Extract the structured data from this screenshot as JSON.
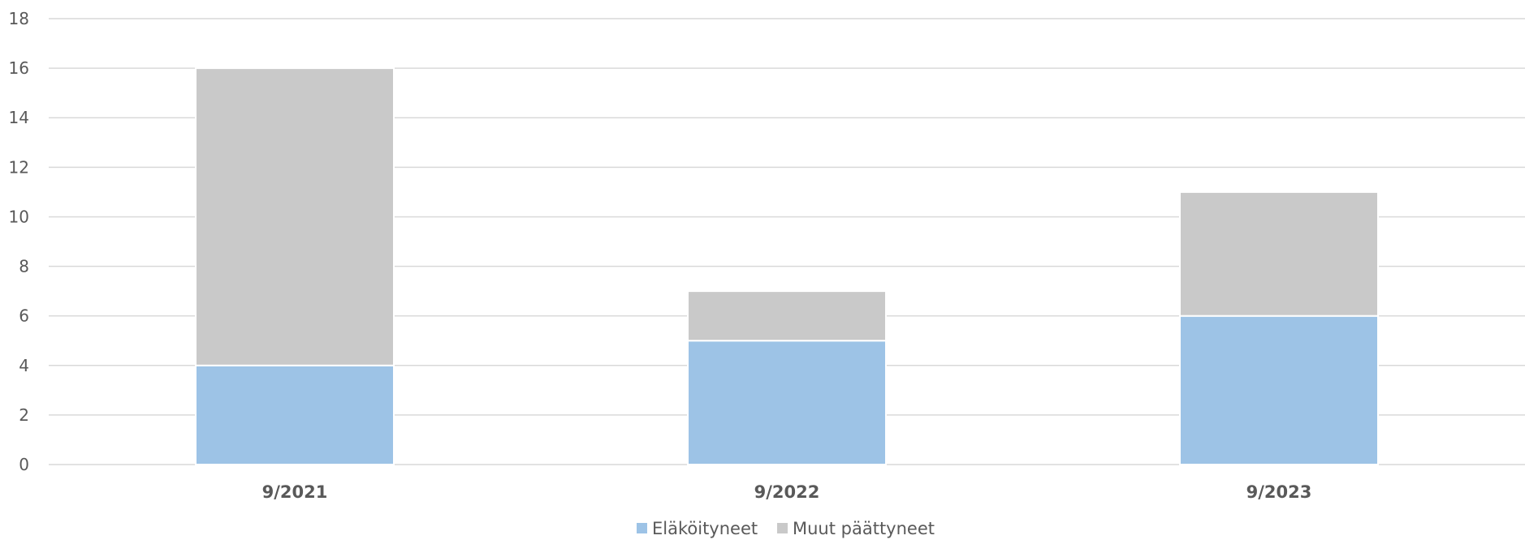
{
  "chart_data": {
    "type": "bar",
    "stacked": true,
    "title": "",
    "xlabel": "",
    "ylabel": "",
    "categories": [
      "9/2021",
      "9/2022",
      "9/2023"
    ],
    "series": [
      {
        "name": "Eläköityneet",
        "values": [
          4,
          5,
          6
        ],
        "color": "#9dc3e6"
      },
      {
        "name": "Muut päättyneet",
        "values": [
          12,
          2,
          5
        ],
        "color": "#c9c9c9"
      }
    ],
    "ylim": [
      0,
      18
    ],
    "yticks": [
      0,
      2,
      4,
      6,
      8,
      10,
      12,
      14,
      16,
      18
    ],
    "grid": true,
    "legend_position": "bottom"
  }
}
